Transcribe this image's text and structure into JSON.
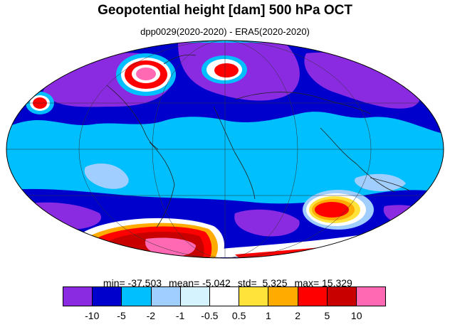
{
  "title": "Geopotential height [dam] 500 hPa OCT",
  "subtitle": "dpp0029(2020-2020) - ERA5(2020-2020)",
  "stats": {
    "min": "min= -37.503",
    "mean": "mean= -5.042",
    "std": "std=  5.325",
    "max": "max= 15.329"
  },
  "map": {
    "projection": "mollweide",
    "field": "difference",
    "region_levels": [
      {
        "id": "deep-blue-north",
        "level": "-10 to -5"
      },
      {
        "id": "deep-blue-south",
        "level": "-10 to -5"
      },
      {
        "id": "purple-north",
        "level": "< -10"
      },
      {
        "id": "purple-south",
        "level": "< -10"
      },
      {
        "id": "greenland-high",
        "level": "> 10"
      },
      {
        "id": "scandinavia-high",
        "level": "> 5"
      },
      {
        "id": "pacific-high",
        "level": "> 2"
      },
      {
        "id": "indian-ocean-high",
        "level": "> 5"
      },
      {
        "id": "antarctic-high",
        "level": "> 10"
      }
    ]
  },
  "colorbar": {
    "colors": [
      "#8a2be2",
      "#0000cd",
      "#00bfff",
      "#a0cfff",
      "#d4f3ff",
      "#ffffff",
      "#ffe33b",
      "#ffab00",
      "#ff0000",
      "#c80000",
      "#ff69b4"
    ],
    "tick_labels": [
      "-10",
      "-5",
      "-2",
      "-1",
      "-0.5",
      "0.5",
      "1",
      "2",
      "5",
      "10"
    ]
  }
}
